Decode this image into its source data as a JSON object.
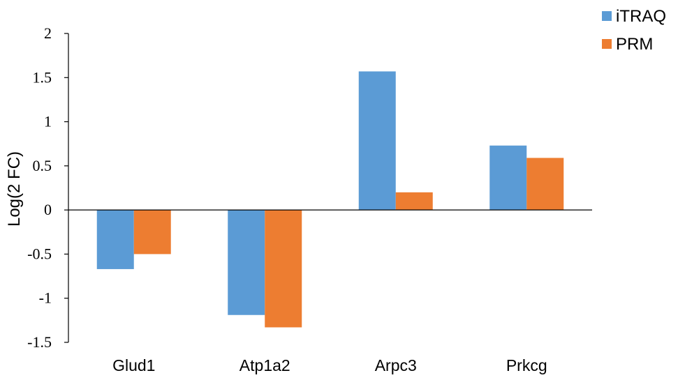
{
  "chart_data": {
    "type": "bar",
    "title": "",
    "xlabel": "",
    "ylabel": "Log(2 FC)",
    "categories": [
      "Glud1",
      "Atp1a2",
      "Arpc3",
      "Prkcg"
    ],
    "series": [
      {
        "name": "iTRAQ",
        "color": "#5B9BD5",
        "values": [
          -0.67,
          -1.19,
          1.57,
          0.73
        ]
      },
      {
        "name": "PRM",
        "color": "#ED7D31",
        "values": [
          -0.5,
          -1.33,
          0.2,
          0.59
        ]
      }
    ],
    "ylim": [
      -1.5,
      2
    ],
    "yticks": [
      2,
      1.5,
      1,
      0.5,
      0,
      -0.5,
      -1,
      -1.5
    ],
    "ytick_labels": [
      "2",
      "1.5",
      "1",
      "0.5",
      "0",
      "-0.5",
      "-1",
      "-1.5"
    ],
    "grid": false,
    "legend_position": "top-right"
  }
}
